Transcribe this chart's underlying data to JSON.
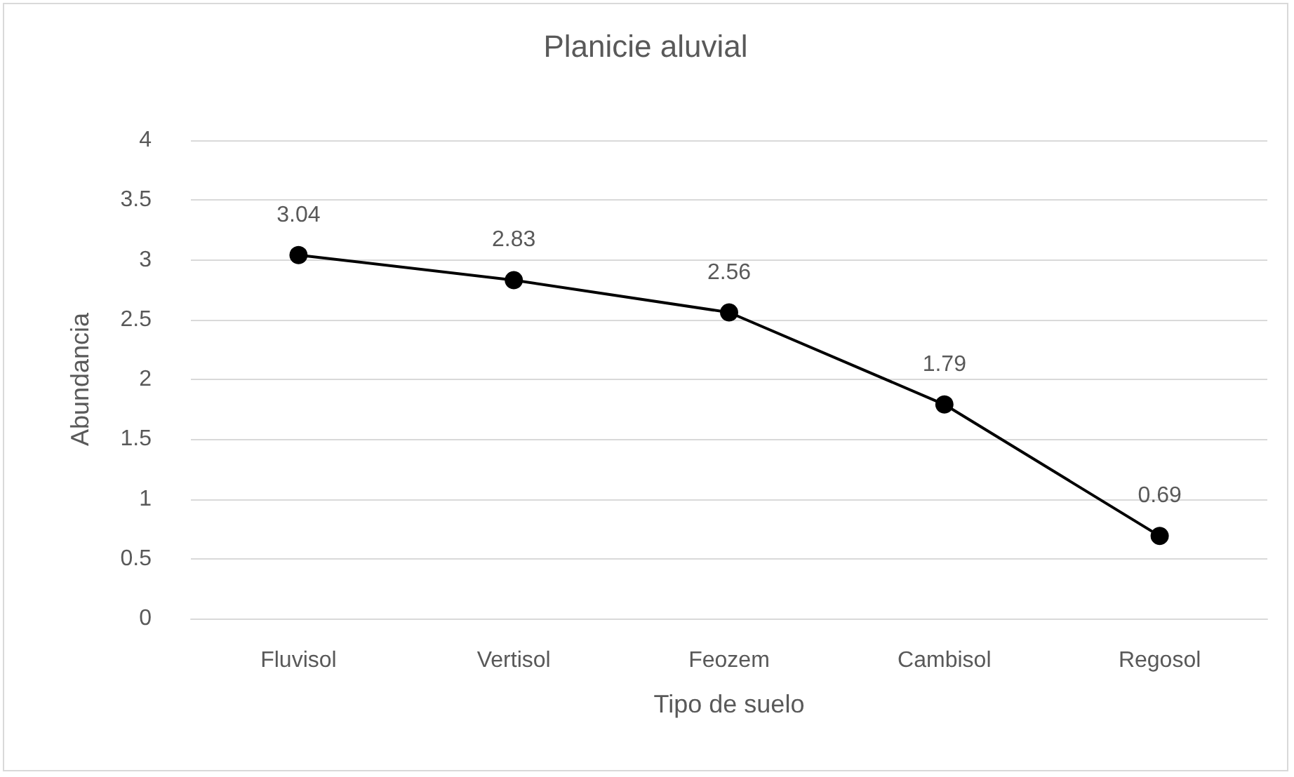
{
  "chart_data": {
    "type": "line",
    "title": "Planicie aluvial",
    "xlabel": "Tipo de suelo",
    "ylabel": "Abundancia",
    "categories": [
      "Fluvisol",
      "Vertisol",
      "Feozem",
      "Cambisol",
      "Regosol"
    ],
    "series": [
      {
        "color": "#000000",
        "values": [
          3.04,
          2.83,
          2.56,
          1.79,
          0.69
        ]
      }
    ],
    "ylim": [
      0,
      4
    ],
    "yticks": [
      0,
      0.5,
      1,
      1.5,
      2,
      2.5,
      3,
      3.5,
      4
    ],
    "grid": "y",
    "marker": "circle",
    "line_style": "solid",
    "data_labels": true
  }
}
